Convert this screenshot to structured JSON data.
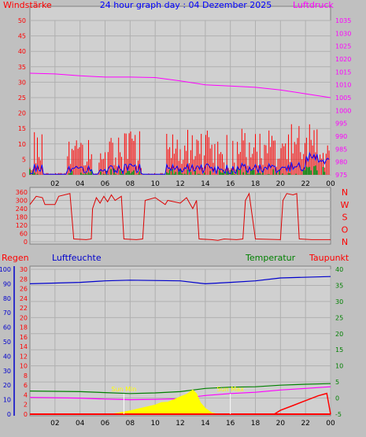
{
  "chart_data": [
    {
      "type": "line",
      "title": "24 hour graph day : 04 Dezember 2025",
      "left_label": "Windstärke",
      "right_label": "Luftdruck",
      "x_ticks": [
        "02",
        "04",
        "06",
        "08",
        "10",
        "12",
        "14",
        "16",
        "18",
        "20",
        "22",
        "00"
      ],
      "x_range": [
        0,
        24
      ],
      "left_axis": {
        "range": [
          0,
          50
        ],
        "ticks": [
          0,
          5,
          10,
          15,
          20,
          25,
          30,
          35,
          40,
          45,
          50
        ]
      },
      "right_axis": {
        "range": [
          975,
          1035
        ],
        "ticks": [
          975,
          980,
          985,
          990,
          995,
          1000,
          1005,
          1010,
          1015,
          1020,
          1025,
          1030,
          1035
        ]
      },
      "colors": {
        "gust": "#ff0000",
        "wind": "#0000ff",
        "calm": "#008000",
        "pressure": "#ff00ff"
      },
      "series": [
        {
          "name": "Luftdruck",
          "axis": "right",
          "x": [
            0,
            2,
            4,
            6,
            8,
            10,
            12,
            14,
            16,
            18,
            20,
            22,
            24
          ],
          "values": [
            1014.5,
            1014.2,
            1013.5,
            1013.0,
            1013.0,
            1012.8,
            1011.5,
            1010.0,
            1009.5,
            1009.0,
            1008.0,
            1006.5,
            1005.0
          ]
        }
      ]
    },
    {
      "type": "line",
      "title": "",
      "right_labels": [
        "N",
        "W",
        "S",
        "O",
        "N"
      ],
      "x_range": [
        0,
        24
      ],
      "left_axis": {
        "range": [
          0,
          360
        ],
        "ticks": [
          0,
          60,
          120,
          180,
          240,
          300,
          360
        ]
      },
      "colors": {
        "direction": "#dd0000"
      },
      "series": [
        {
          "name": "Windrichtung",
          "x": [
            0,
            0.5,
            1,
            1.2,
            2.0,
            2.3,
            3.2,
            3.5,
            4.5,
            4.9,
            5.0,
            5.3,
            5.6,
            5.9,
            6.2,
            6.5,
            6.8,
            7.3,
            7.5,
            8.5,
            9.0,
            9.2,
            10.0,
            10.8,
            11.0,
            12.0,
            12.5,
            13.0,
            13.3,
            13.5,
            14.5,
            15.0,
            15.5,
            16.5,
            17.0,
            17.2,
            17.5,
            18.0,
            20.0,
            20.2,
            20.5,
            21.0,
            21.3,
            21.5,
            22.5,
            24.0
          ],
          "values": [
            270,
            330,
            320,
            270,
            270,
            330,
            350,
            20,
            15,
            20,
            240,
            320,
            280,
            330,
            290,
            340,
            300,
            330,
            20,
            15,
            20,
            300,
            320,
            270,
            300,
            280,
            320,
            240,
            300,
            20,
            15,
            10,
            20,
            15,
            20,
            300,
            350,
            20,
            15,
            300,
            350,
            340,
            350,
            20,
            15,
            15
          ]
        }
      ]
    },
    {
      "type": "line",
      "title": "",
      "labels": {
        "rain": "Regen",
        "humidity": "Luftfeuchte",
        "temperature": "Temperatur",
        "dewpoint": "Taupunkt"
      },
      "x_ticks": [
        "02",
        "04",
        "06",
        "08",
        "10",
        "12",
        "14",
        "16",
        "18",
        "20",
        "22",
        "00"
      ],
      "x_range": [
        0,
        24
      ],
      "humidity_axis": {
        "range": [
          0,
          100
        ],
        "ticks": [
          0,
          10,
          20,
          30,
          40,
          50,
          60,
          70,
          80,
          90,
          100
        ]
      },
      "rain_axis": {
        "range": [
          0,
          30
        ],
        "ticks": [
          0,
          2,
          4,
          6,
          8,
          10,
          12,
          14,
          16,
          18,
          20,
          22,
          24,
          26,
          28,
          30
        ]
      },
      "temperature_axis": {
        "range": [
          -5,
          40
        ],
        "ticks": [
          -5,
          0,
          5,
          10,
          15,
          20,
          25,
          30,
          35,
          40
        ]
      },
      "annotations": [
        {
          "text": "Sun Min",
          "x": 7.5
        },
        {
          "text": "Sun Max",
          "x": 16.0
        }
      ],
      "colors": {
        "humidity": "#0000cc",
        "temperature": "#008000",
        "dewpoint": "#ff00ff",
        "rain": "#ff0000",
        "sun": "#ffff00"
      },
      "series": [
        {
          "name": "Luftfeuchte",
          "axis": "humidity",
          "x": [
            0,
            4,
            6,
            8,
            12,
            14,
            16,
            18,
            20,
            24
          ],
          "values": [
            90,
            91,
            92,
            92.5,
            92,
            90,
            91,
            92,
            94,
            95
          ]
        },
        {
          "name": "Temperatur",
          "axis": "temperature",
          "x": [
            0,
            4,
            6,
            8,
            10,
            12,
            14,
            16,
            18,
            20,
            22,
            24
          ],
          "values": [
            2.2,
            2.0,
            1.7,
            1.4,
            1.6,
            2.0,
            3.0,
            3.4,
            3.5,
            4.0,
            4.3,
            4.5
          ]
        },
        {
          "name": "Taupunkt",
          "axis": "temperature",
          "x": [
            0,
            4,
            6,
            8,
            10,
            12,
            14,
            16,
            18,
            20,
            22,
            24
          ],
          "values": [
            0.2,
            0.0,
            -0.3,
            -0.5,
            -0.4,
            -0.2,
            0.8,
            1.4,
            1.8,
            2.5,
            3.0,
            3.5
          ]
        },
        {
          "name": "Regen",
          "axis": "rain",
          "x": [
            0,
            19.5,
            20,
            21,
            22,
            23,
            23.7,
            24
          ],
          "values": [
            0,
            0,
            0.8,
            1.8,
            2.8,
            3.8,
            4.3,
            0
          ]
        },
        {
          "name": "Sonne",
          "axis": "rain",
          "x": [
            6.5,
            7,
            8,
            9,
            10,
            10.5,
            11,
            11.5,
            12,
            12.5,
            13,
            13.3,
            13.6,
            14,
            14.5,
            15
          ],
          "values": [
            0,
            0.2,
            0.7,
            1.3,
            1.9,
            2.4,
            2.5,
            3.0,
            3.6,
            4.1,
            5.0,
            4.2,
            2.4,
            1.2,
            0.3,
            0
          ]
        }
      ]
    }
  ]
}
